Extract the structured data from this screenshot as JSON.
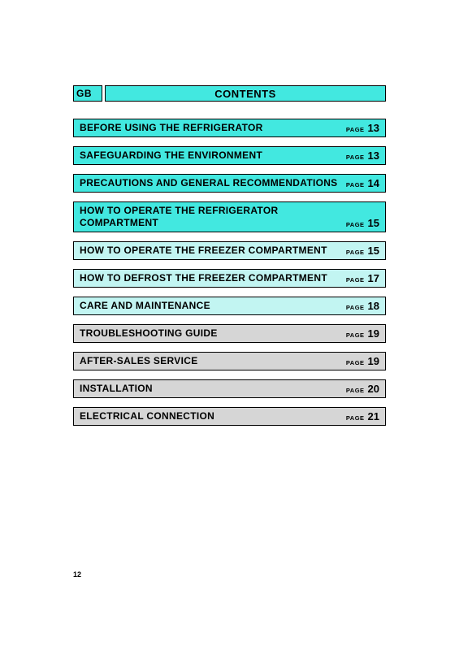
{
  "header": {
    "lang": "GB",
    "title": "CONTENTS",
    "header_bg": "#42e8e0",
    "border_color": "#000000"
  },
  "colors": {
    "cyan": "#42e8e0",
    "light_cyan": "#c2f5f2",
    "gray": "#d6d6d6",
    "border": "#000000",
    "text": "#000000"
  },
  "page_label": "PAGE",
  "entries": [
    {
      "title": "BEFORE USING THE REFRIGERATOR",
      "page": "13",
      "bg": "#42e8e0",
      "multiline": false
    },
    {
      "title": "SAFEGUARDING THE ENVIRONMENT",
      "page": "13",
      "bg": "#42e8e0",
      "multiline": false
    },
    {
      "title": "PRECAUTIONS AND GENERAL RECOMMENDATIONS",
      "page": "14",
      "bg": "#42e8e0",
      "multiline": true
    },
    {
      "title": "HOW TO OPERATE THE REFRIGERATOR COMPARTMENT",
      "page": "15",
      "bg": "#42e8e0",
      "multiline": true
    },
    {
      "title": "HOW TO OPERATE THE FREEZER COMPARTMENT",
      "page": "15",
      "bg": "#c2f5f2",
      "multiline": false
    },
    {
      "title": "HOW TO DEFROST THE FREEZER COMPARTMENT",
      "page": "17",
      "bg": "#c2f5f2",
      "multiline": false
    },
    {
      "title": "CARE AND MAINTENANCE",
      "page": "18",
      "bg": "#c2f5f2",
      "multiline": false
    },
    {
      "title": "TROUBLESHOOTING GUIDE",
      "page": "19",
      "bg": "#d6d6d6",
      "multiline": false
    },
    {
      "title": "AFTER-SALES SERVICE",
      "page": "19",
      "bg": "#d6d6d6",
      "multiline": false
    },
    {
      "title": "INSTALLATION",
      "page": "20",
      "bg": "#d6d6d6",
      "multiline": false
    },
    {
      "title": "ELECTRICAL CONNECTION",
      "page": "21",
      "bg": "#d6d6d6",
      "multiline": false
    }
  ],
  "footer_page": "12"
}
